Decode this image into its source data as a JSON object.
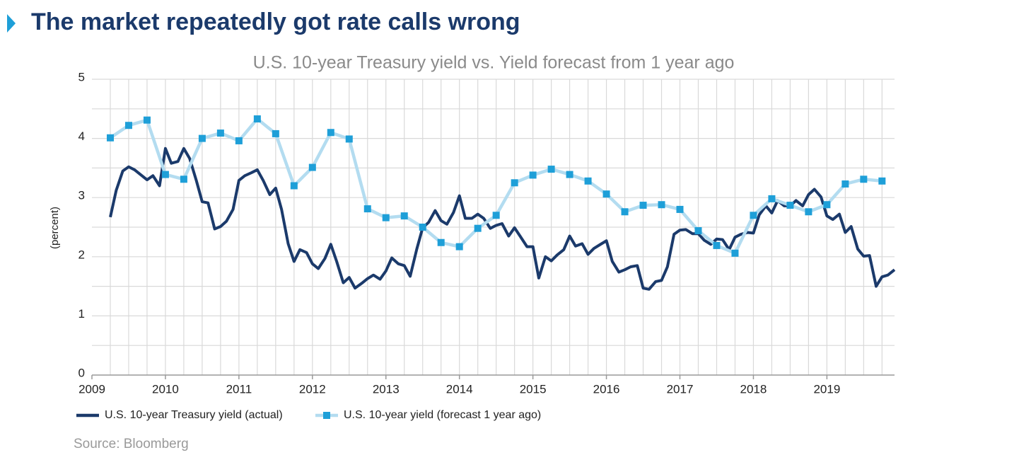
{
  "chart_data": {
    "type": "line",
    "title": "The market repeatedly got rate calls wrong",
    "subtitle": "U.S. 10-year Treasury yield vs. Yield forecast from 1 year ago",
    "y_label": "(percent)",
    "source": "Source: Bloomberg",
    "xlim": [
      2009,
      2019.92
    ],
    "xticks": [
      2009,
      2010,
      2011,
      2012,
      2013,
      2014,
      2015,
      2016,
      2017,
      2018,
      2019
    ],
    "ylim": [
      0,
      5
    ],
    "yticks": [
      0,
      1,
      2,
      3,
      4,
      5
    ],
    "grid": true,
    "minor_grid_step": {
      "x": 0.25,
      "y": 0.5
    },
    "legend": "bottom-left",
    "series": [
      {
        "name": "U.S. 10-year Treasury yield (actual)",
        "color": "#1b3a6b",
        "marker": "none",
        "x": [
          2009.25,
          2009.33,
          2009.42,
          2009.5,
          2009.58,
          2009.67,
          2009.75,
          2009.83,
          2009.92,
          2010,
          2010.08,
          2010.17,
          2010.25,
          2010.33,
          2010.42,
          2010.5,
          2010.58,
          2010.67,
          2010.75,
          2010.83,
          2010.92,
          2011,
          2011.08,
          2011.17,
          2011.25,
          2011.33,
          2011.42,
          2011.5,
          2011.58,
          2011.67,
          2011.75,
          2011.83,
          2011.92,
          2012,
          2012.08,
          2012.17,
          2012.25,
          2012.33,
          2012.42,
          2012.5,
          2012.58,
          2012.67,
          2012.75,
          2012.83,
          2012.92,
          2013,
          2013.08,
          2013.17,
          2013.25,
          2013.33,
          2013.42,
          2013.5,
          2013.58,
          2013.67,
          2013.75,
          2013.83,
          2013.92,
          2014,
          2014.08,
          2014.17,
          2014.25,
          2014.33,
          2014.42,
          2014.5,
          2014.58,
          2014.67,
          2014.75,
          2014.83,
          2014.92,
          2015,
          2015.08,
          2015.17,
          2015.25,
          2015.33,
          2015.42,
          2015.5,
          2015.58,
          2015.67,
          2015.75,
          2015.83,
          2015.92,
          2016,
          2016.08,
          2016.17,
          2016.25,
          2016.33,
          2016.42,
          2016.5,
          2016.58,
          2016.67,
          2016.75,
          2016.83,
          2016.92,
          2017,
          2017.08,
          2017.17,
          2017.25,
          2017.33,
          2017.42,
          2017.5,
          2017.58,
          2017.67,
          2017.75,
          2017.83,
          2017.92,
          2018,
          2018.08,
          2018.17,
          2018.25,
          2018.33,
          2018.42,
          2018.5,
          2018.58,
          2018.67,
          2018.75,
          2018.83,
          2018.92,
          2019,
          2019.08,
          2019.17,
          2019.25,
          2019.33,
          2019.42,
          2019.5,
          2019.58,
          2019.67,
          2019.75,
          2019.83,
          2019.92
        ],
        "values": [
          2.67,
          3.12,
          3.45,
          3.52,
          3.47,
          3.38,
          3.3,
          3.37,
          3.2,
          3.83,
          3.58,
          3.61,
          3.83,
          3.66,
          3.29,
          2.93,
          2.91,
          2.47,
          2.51,
          2.6,
          2.8,
          3.29,
          3.37,
          3.42,
          3.47,
          3.29,
          3.05,
          3.16,
          2.8,
          2.22,
          1.92,
          2.12,
          2.07,
          1.88,
          1.8,
          1.97,
          2.21,
          1.92,
          1.56,
          1.65,
          1.47,
          1.55,
          1.63,
          1.69,
          1.62,
          1.76,
          1.98,
          1.88,
          1.85,
          1.67,
          2.13,
          2.49,
          2.58,
          2.78,
          2.61,
          2.55,
          2.75,
          3.03,
          2.65,
          2.65,
          2.72,
          2.65,
          2.48,
          2.53,
          2.56,
          2.35,
          2.49,
          2.34,
          2.17,
          2.17,
          1.64,
          2.0,
          1.93,
          2.03,
          2.12,
          2.35,
          2.18,
          2.22,
          2.04,
          2.14,
          2.21,
          2.27,
          1.92,
          1.74,
          1.78,
          1.83,
          1.85,
          1.47,
          1.45,
          1.58,
          1.6,
          1.83,
          2.38,
          2.45,
          2.46,
          2.39,
          2.39,
          2.28,
          2.21,
          2.3,
          2.29,
          2.12,
          2.33,
          2.38,
          2.41,
          2.4,
          2.71,
          2.86,
          2.74,
          2.95,
          2.86,
          2.86,
          2.95,
          2.86,
          3.05,
          3.14,
          3.01,
          2.69,
          2.63,
          2.72,
          2.41,
          2.51,
          2.13,
          2.01,
          2.02,
          1.5,
          1.66,
          1.69,
          1.78
        ]
      },
      {
        "name": "U.S. 10-year yield (forecast 1 year ago)",
        "color": "#b3dcf0",
        "marker": "square",
        "marker_color": "#1e9fd8",
        "x": [
          2009.25,
          2009.5,
          2009.75,
          2010,
          2010.25,
          2010.5,
          2010.75,
          2011,
          2011.25,
          2011.5,
          2011.75,
          2012,
          2012.25,
          2012.5,
          2012.75,
          2013,
          2013.25,
          2013.5,
          2013.75,
          2014,
          2014.25,
          2014.5,
          2014.75,
          2015,
          2015.25,
          2015.5,
          2015.75,
          2016,
          2016.25,
          2016.5,
          2016.75,
          2017,
          2017.25,
          2017.5,
          2017.75,
          2018,
          2018.25,
          2018.5,
          2018.75,
          2019,
          2019.25,
          2019.5,
          2019.75
        ],
        "values": [
          4.01,
          4.22,
          4.31,
          3.39,
          3.31,
          4.0,
          4.09,
          3.96,
          4.33,
          4.08,
          3.2,
          3.51,
          4.1,
          3.99,
          2.81,
          2.66,
          2.69,
          2.5,
          2.24,
          2.17,
          2.48,
          2.7,
          3.25,
          3.38,
          3.48,
          3.39,
          3.28,
          3.06,
          2.76,
          2.87,
          2.88,
          2.8,
          2.44,
          2.19,
          2.06,
          2.7,
          2.98,
          2.87,
          2.76,
          2.88,
          3.23,
          3.31,
          3.28
        ]
      }
    ]
  }
}
